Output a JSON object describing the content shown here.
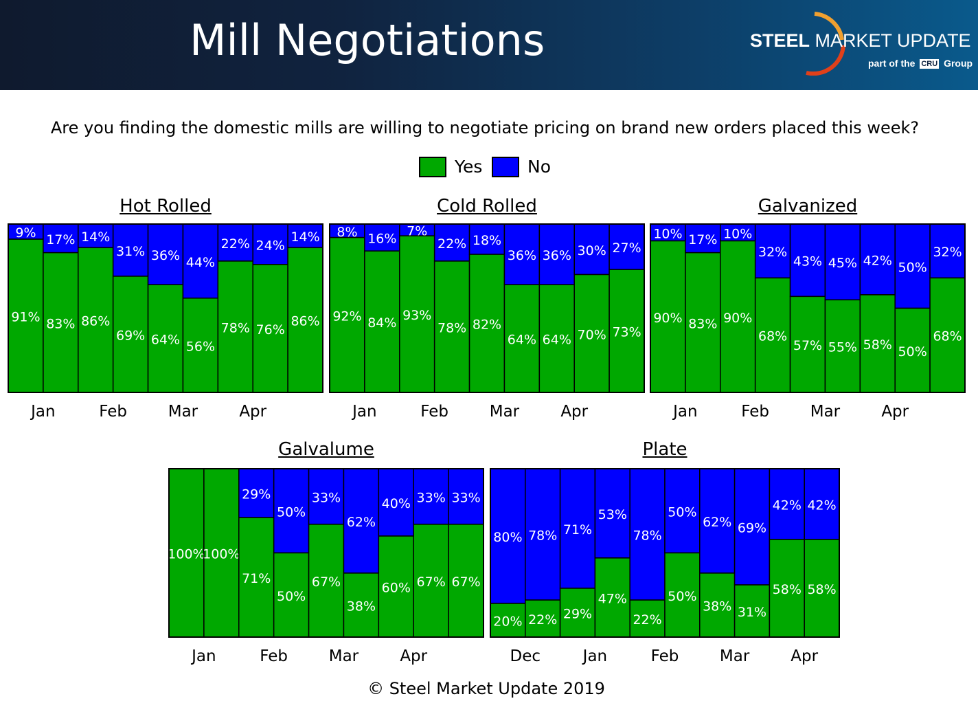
{
  "header": {
    "title": "Mill Negotiations",
    "logo": {
      "name_bold": "STEEL",
      "name_rest": "MARKET UPDATE",
      "sub_prefix": "part of the",
      "sub_box": "CRU",
      "sub_suffix": "Group"
    }
  },
  "question": "Are you finding the domestic mills are willing to negotiate pricing on brand new orders placed this week?",
  "legend": [
    {
      "label": "Yes",
      "color": "#00a800"
    },
    {
      "label": "No",
      "color": "#0000ff"
    }
  ],
  "colors": {
    "yes": "#00a800",
    "no": "#0000ff",
    "border": "#000000"
  },
  "footer": "© Steel Market Update 2019",
  "chart_data": [
    {
      "type": "bar",
      "stacked": true,
      "title": "Hot Rolled",
      "series": [
        {
          "name": "Yes",
          "values": [
            91,
            83,
            86,
            69,
            64,
            56,
            78,
            76,
            86
          ]
        },
        {
          "name": "No",
          "values": [
            9,
            17,
            14,
            31,
            36,
            44,
            22,
            24,
            14
          ]
        }
      ],
      "month_labels": [
        "Jan",
        "Feb",
        "Mar",
        "Apr"
      ],
      "ylim": [
        0,
        100
      ]
    },
    {
      "type": "bar",
      "stacked": true,
      "title": "Cold Rolled",
      "series": [
        {
          "name": "Yes",
          "values": [
            92,
            84,
            93,
            78,
            82,
            64,
            64,
            70,
            73
          ]
        },
        {
          "name": "No",
          "values": [
            8,
            16,
            7,
            22,
            18,
            36,
            36,
            30,
            27
          ]
        }
      ],
      "month_labels": [
        "Jan",
        "Feb",
        "Mar",
        "Apr"
      ],
      "ylim": [
        0,
        100
      ]
    },
    {
      "type": "bar",
      "stacked": true,
      "title": "Galvanized",
      "series": [
        {
          "name": "Yes",
          "values": [
            90,
            83,
            90,
            68,
            57,
            55,
            58,
            50,
            68
          ]
        },
        {
          "name": "No",
          "values": [
            10,
            17,
            10,
            32,
            43,
            45,
            42,
            50,
            32
          ]
        }
      ],
      "month_labels": [
        "Jan",
        "Feb",
        "Mar",
        "Apr"
      ],
      "ylim": [
        0,
        100
      ]
    },
    {
      "type": "bar",
      "stacked": true,
      "title": "Galvalume",
      "series": [
        {
          "name": "Yes",
          "values": [
            100,
            100,
            71,
            50,
            67,
            38,
            60,
            67,
            67
          ]
        },
        {
          "name": "No",
          "values": [
            0,
            0,
            29,
            50,
            33,
            62,
            40,
            33,
            33
          ]
        }
      ],
      "month_labels": [
        "Jan",
        "Feb",
        "Mar",
        "Apr"
      ],
      "ylim": [
        0,
        100
      ]
    },
    {
      "type": "bar",
      "stacked": true,
      "title": "Plate",
      "series": [
        {
          "name": "Yes",
          "values": [
            20,
            22,
            29,
            47,
            22,
            50,
            38,
            31,
            58,
            58
          ]
        },
        {
          "name": "No",
          "values": [
            80,
            78,
            71,
            53,
            78,
            50,
            62,
            69,
            42,
            42
          ]
        }
      ],
      "month_labels": [
        "Dec",
        "Jan",
        "Feb",
        "Mar",
        "Apr"
      ],
      "ylim": [
        0,
        100
      ]
    }
  ]
}
